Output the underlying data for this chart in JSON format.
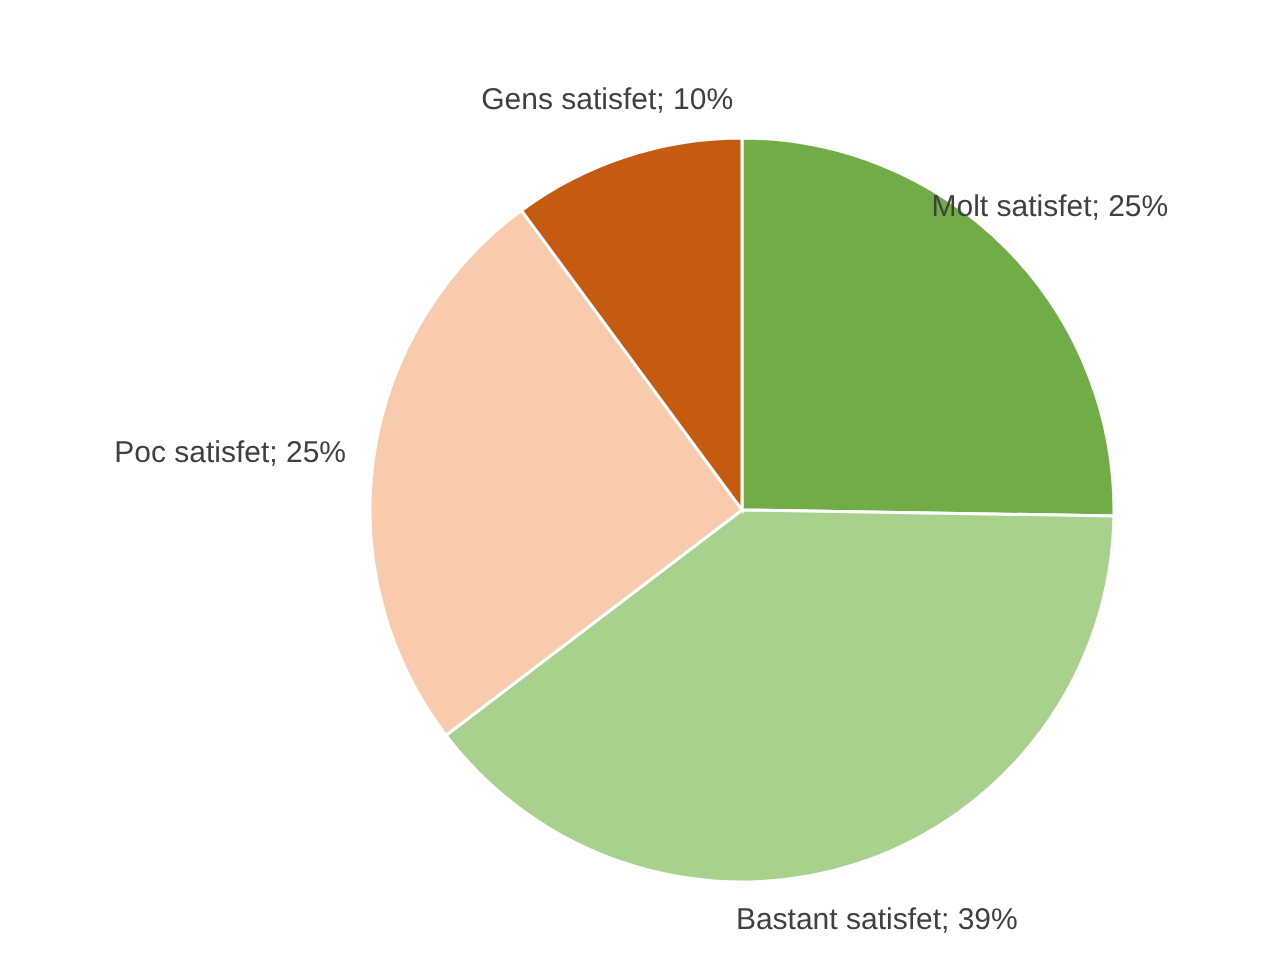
{
  "chart_data": {
    "type": "pie",
    "categories": [
      "Molt satisfet",
      "Bastant satisfet",
      "Poc satisfet",
      "Gens satisfet"
    ],
    "values": [
      25,
      39,
      25,
      10
    ],
    "value_labels": [
      "25%",
      "39%",
      "25%",
      "10%"
    ],
    "colors": [
      "#70ad47",
      "#a9d18e",
      "#f8cbad",
      "#c55a11"
    ]
  }
}
